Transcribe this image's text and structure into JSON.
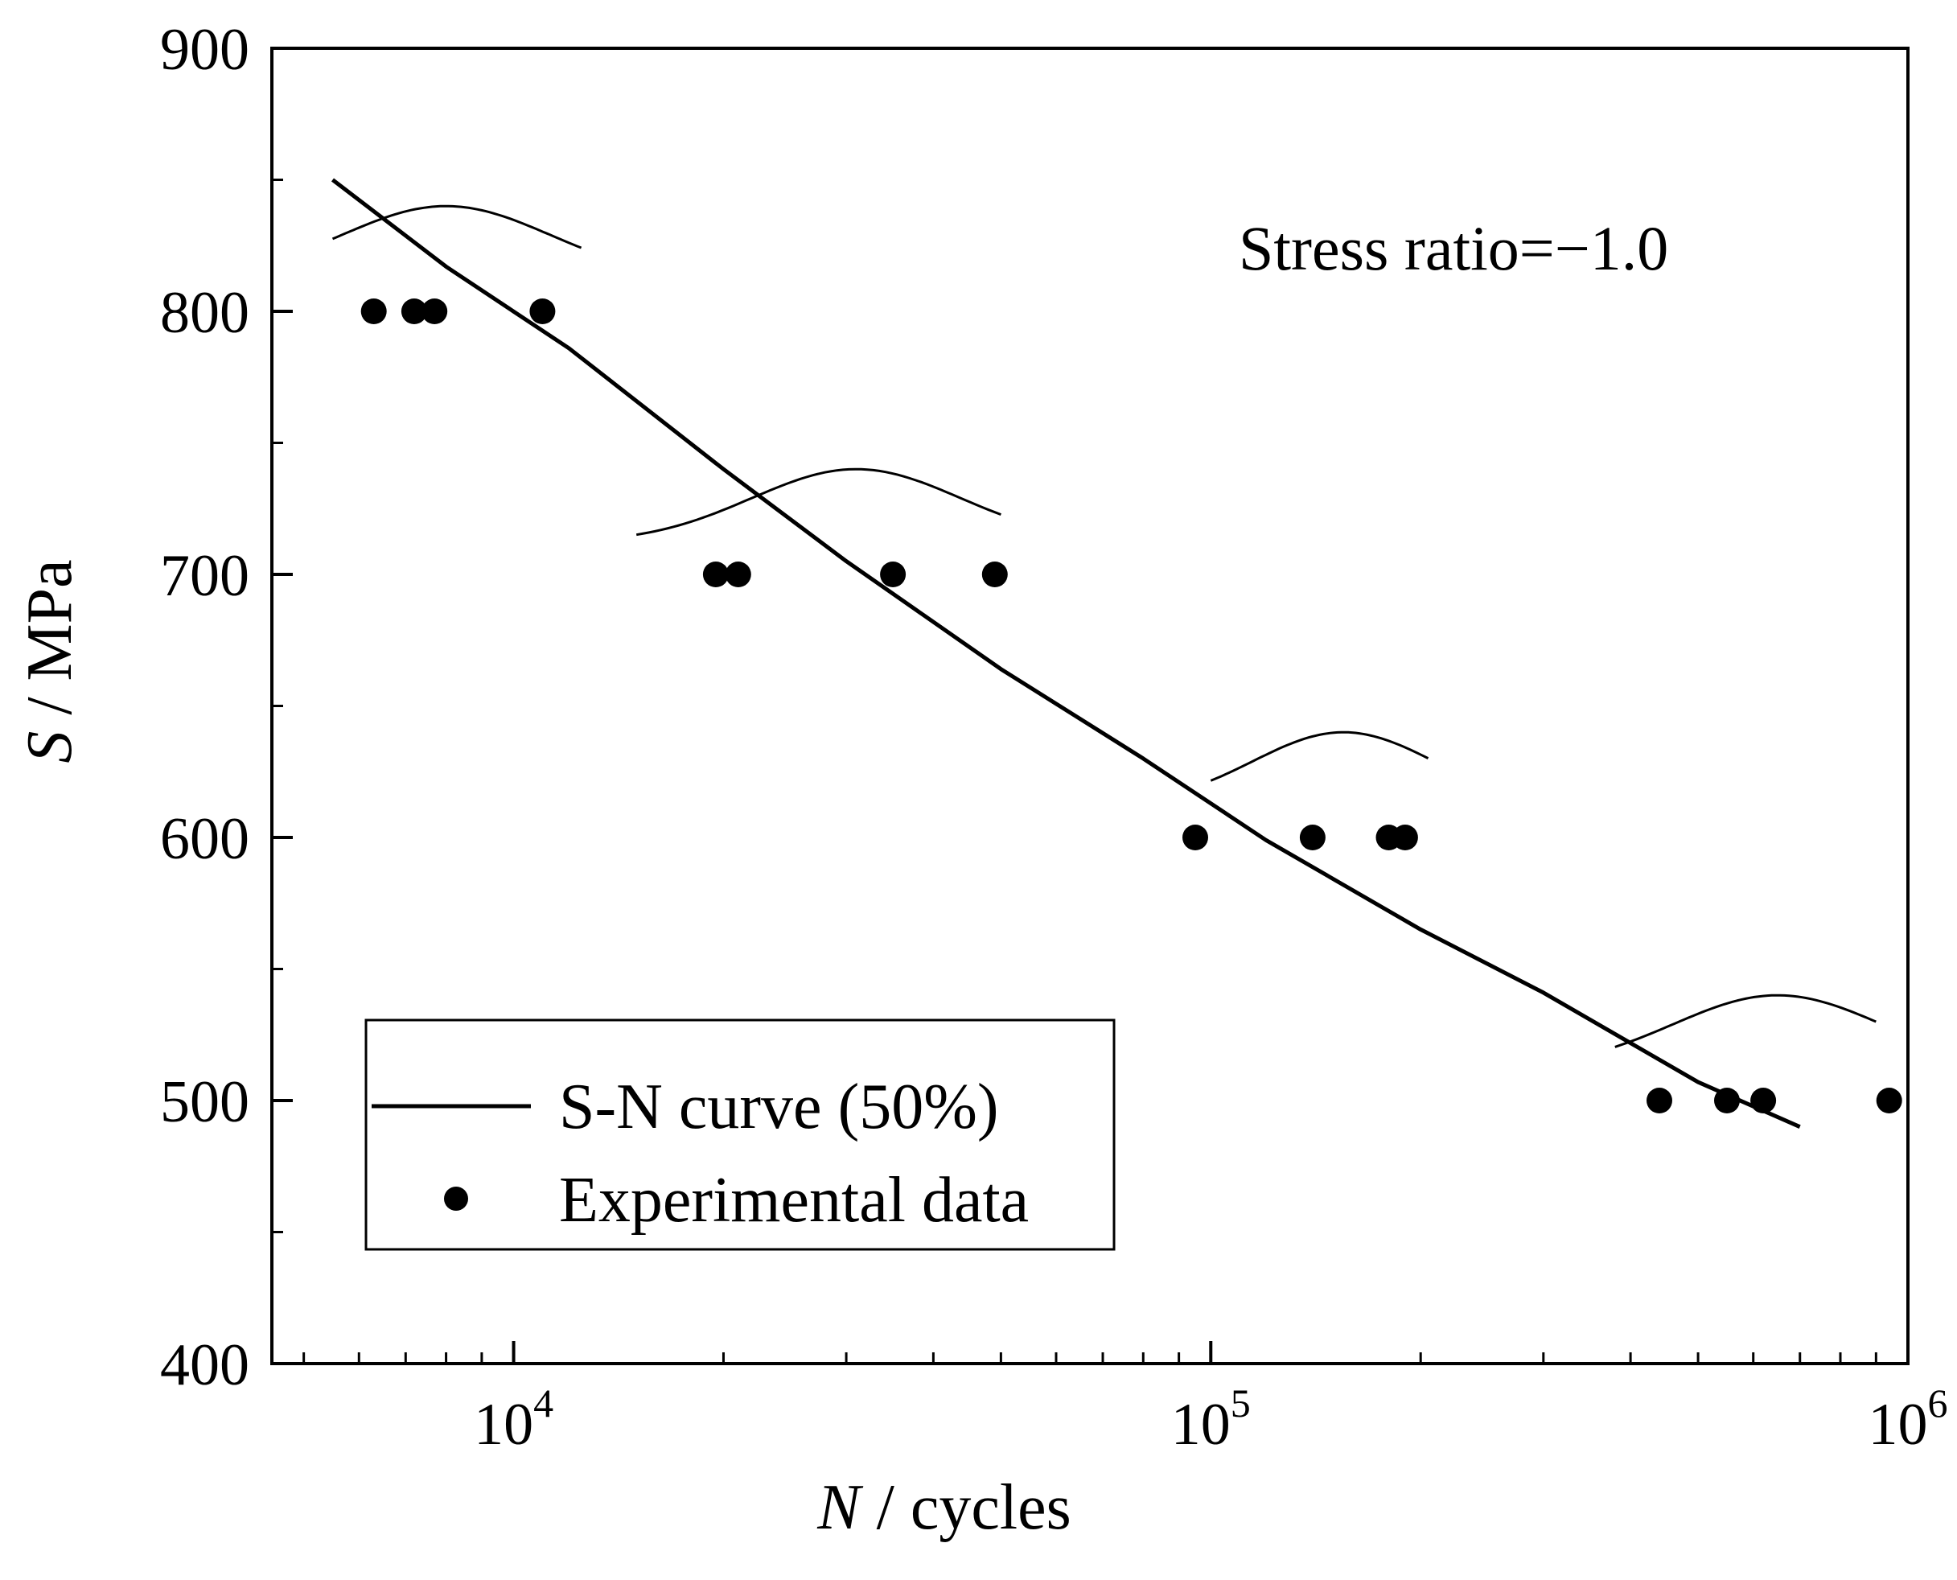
{
  "chart_data": {
    "type": "scatter",
    "title": "",
    "xlabel": {
      "italic": "N",
      "rest": " / cycles"
    },
    "ylabel": {
      "italic": "S",
      "rest": " / MPa"
    },
    "xscale": "log",
    "xlim": [
      4500,
      1000000
    ],
    "ylim": [
      400,
      900
    ],
    "y_ticks": [
      "400",
      "500",
      "600",
      "700",
      "800",
      "900"
    ],
    "x_ticks": [
      {
        "base": "10",
        "exp": "4",
        "value": 10000
      },
      {
        "base": "10",
        "exp": "5",
        "value": 100000
      },
      {
        "base": "10",
        "exp": "6",
        "value": 1000000
      }
    ],
    "annotation": "Stress ratio=−1.0",
    "legend": {
      "position": "bottom-left",
      "entries": [
        "S-N curve (50%)",
        "Experimental data"
      ]
    },
    "series": [
      {
        "name": "S-N curve (50%)",
        "kind": "line",
        "x": [
          5500,
          8000,
          12000,
          20000,
          30000,
          50000,
          80000,
          120000,
          200000,
          300000,
          500000,
          700000
        ],
        "y": [
          850,
          817,
          786,
          740,
          705,
          664,
          630,
          599,
          565,
          541,
          507,
          490
        ]
      },
      {
        "name": "Experimental data",
        "kind": "scatter",
        "x": [
          6300,
          7200,
          7700,
          11000,
          19500,
          21000,
          35000,
          49000,
          95000,
          140000,
          180000,
          190000,
          440000,
          550000,
          620000,
          940000
        ],
        "y": [
          800,
          800,
          800,
          800,
          700,
          700,
          700,
          700,
          600,
          600,
          600,
          600,
          500,
          500,
          500,
          500
        ]
      }
    ],
    "distributions": [
      {
        "label": "",
        "level": 800,
        "center": 8000,
        "x_from": 5500,
        "x_to": 12500,
        "sigma": 0.15,
        "peak_value": 840,
        "base_value": 812
      },
      {
        "label": "",
        "level": 700,
        "center": 31000,
        "x_from": 15000,
        "x_to": 50000,
        "sigma": 0.15,
        "peak_value": 740,
        "base_value": 712
      },
      {
        "label": "",
        "level": 600,
        "center": 155000,
        "x_from": 100000,
        "x_to": 205000,
        "sigma": 0.13,
        "peak_value": 640,
        "base_value": 612
      },
      {
        "label": "",
        "level": 500,
        "center": 650000,
        "x_from": 380000,
        "x_to": 900000,
        "sigma": 0.15,
        "peak_value": 540,
        "base_value": 512
      }
    ],
    "colors": {
      "line": "#000000",
      "marker": "#000000"
    }
  }
}
